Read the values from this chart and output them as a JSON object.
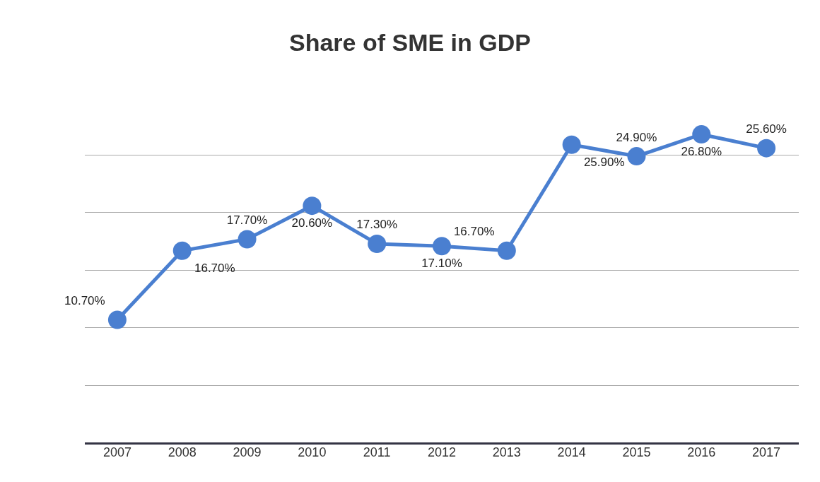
{
  "chart_data": {
    "type": "line",
    "title": "Share of SME in GDP",
    "categories": [
      "2007",
      "2008",
      "2009",
      "2010",
      "2011",
      "2012",
      "2013",
      "2014",
      "2015",
      "2016",
      "2017"
    ],
    "series": [
      {
        "color": "#4a7fd0",
        "values": [
          10.7,
          16.7,
          17.7,
          20.6,
          17.3,
          17.1,
          16.7,
          25.9,
          24.9,
          26.8,
          25.6
        ],
        "value_labels": [
          "10.70%",
          "16.70%",
          "17.70%",
          "20.60%",
          "17.30%",
          "17.10%",
          "16.70%",
          "25.90%",
          "24.90%",
          "26.80%",
          "25.60%"
        ]
      }
    ],
    "tick_labels": "x",
    "grid": "y",
    "marker": "circle",
    "line_style": "solid"
  }
}
